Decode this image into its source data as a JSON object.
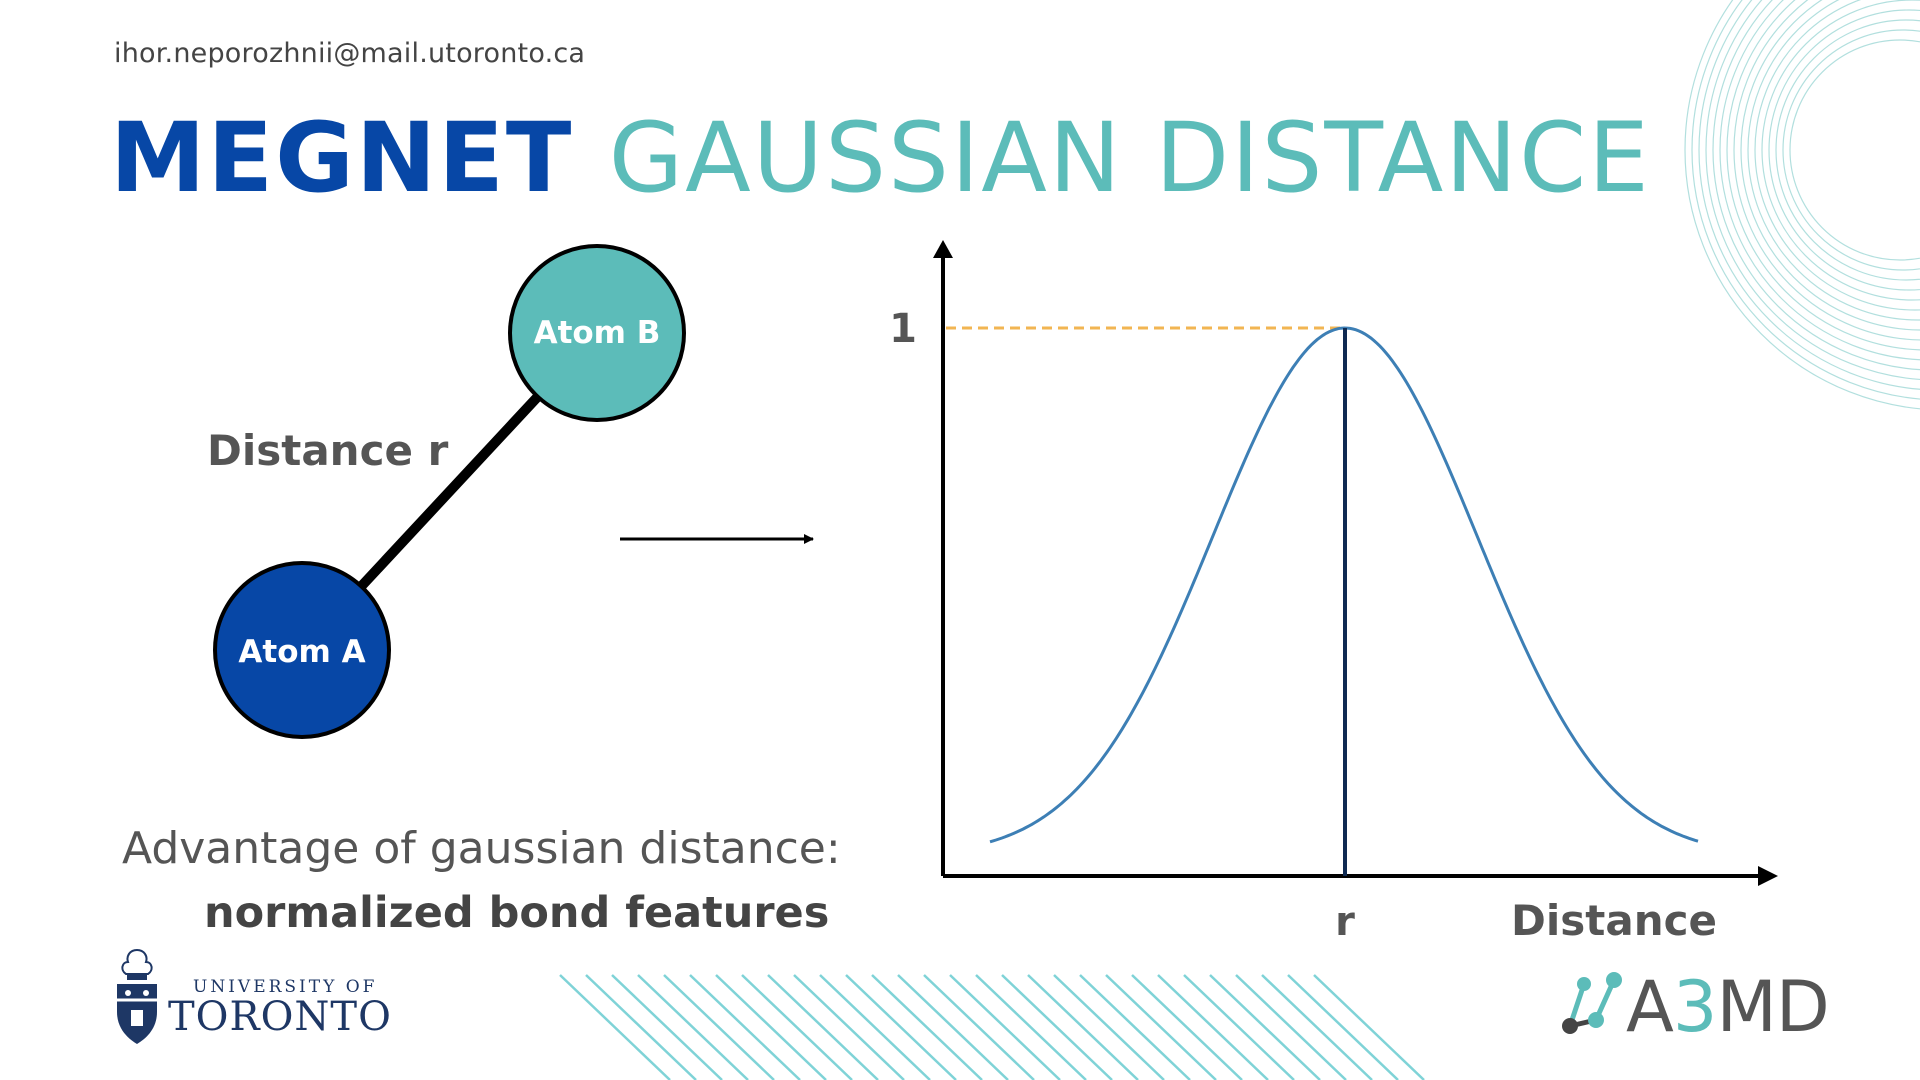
{
  "header": {
    "email": "ihor.neporozhnii@mail.utoronto.ca",
    "title_part1": "MEGNET",
    "title_part2": "GAUSSIAN DISTANCE"
  },
  "diagram": {
    "atom_a": "Atom A",
    "atom_b": "Atom B",
    "bond_label": "Distance r"
  },
  "chart_data": {
    "type": "line",
    "title": "",
    "xlabel": "Distance",
    "ylabel": "",
    "y_tick_labels": [
      "1"
    ],
    "x_tick_labels": [
      "r"
    ],
    "series": [
      {
        "function": "gaussian",
        "center": "r",
        "peak": 1
      }
    ],
    "annotations": [
      "dashed line at y = 1",
      "vertical line at x = r"
    ]
  },
  "advantage": {
    "line1": "Advantage of gaussian distance:",
    "line2": "normalized bond features"
  },
  "footer": {
    "uoft_small": "UNIVERSITY OF",
    "uoft_big": "TORONTO",
    "a3md_prefix": "A",
    "a3md_accent": "3",
    "a3md_suffix": "MD"
  },
  "colors": {
    "title_blue": "#0747a6",
    "title_teal": "#5cbcb9",
    "atom_a": "#0747a6",
    "atom_b": "#5cbcb9",
    "curve": "#3d7fb5",
    "dashed_peak": "#f2b552",
    "r_line": "#0f2a52"
  }
}
